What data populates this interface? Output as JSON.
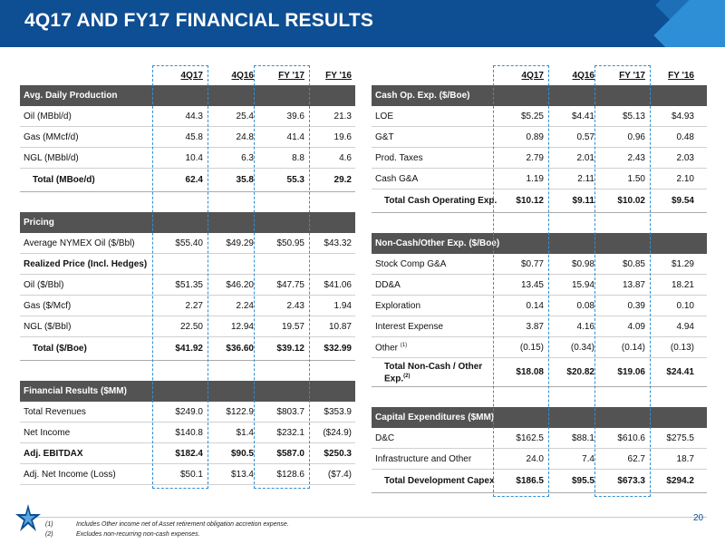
{
  "title": "4Q17 AND FY17 FINANCIAL RESULTS",
  "columns": [
    "4Q17",
    "4Q16",
    "FY '17",
    "FY '16"
  ],
  "left": {
    "sections": [
      {
        "name": "Avg. Daily Production",
        "rows": [
          {
            "label": "Oil (MBbl/d)",
            "values": [
              "44.3",
              "25.4",
              "39.6",
              "21.3"
            ]
          },
          {
            "label": "Gas (MMcf/d)",
            "values": [
              "45.8",
              "24.8",
              "41.4",
              "19.6"
            ]
          },
          {
            "label": "NGL (MBbl/d)",
            "values": [
              "10.4",
              "6.3",
              "8.8",
              "4.6"
            ]
          }
        ],
        "total": {
          "label": "Total (MBoe/d)",
          "values": [
            "62.4",
            "35.8",
            "55.3",
            "29.2"
          ]
        }
      },
      {
        "name": "Pricing",
        "rows": [
          {
            "label": "Average NYMEX Oil ($/Bbl)",
            "values": [
              "$55.40",
              "$49.29",
              "$50.95",
              "$43.32"
            ]
          },
          {
            "label": "Realized Price (Incl. Hedges)",
            "values": [
              "",
              "",
              "",
              ""
            ]
          },
          {
            "label": "Oil ($/Bbl)",
            "values": [
              "$51.35",
              "$46.20",
              "$47.75",
              "$41.06"
            ]
          },
          {
            "label": "Gas ($/Mcf)",
            "values": [
              "2.27",
              "2.24",
              "2.43",
              "1.94"
            ]
          },
          {
            "label": "NGL ($/Bbl)",
            "values": [
              "22.50",
              "12.94",
              "19.57",
              "10.87"
            ]
          }
        ],
        "total": {
          "label": "Total ($/Boe)",
          "values": [
            "$41.92",
            "$36.60",
            "$39.12",
            "$32.99"
          ]
        }
      },
      {
        "name": "Financial Results ($MM)",
        "rows": [
          {
            "label": "Total Revenues",
            "values": [
              "$249.0",
              "$122.9",
              "$803.7",
              "$353.9"
            ]
          },
          {
            "label": "Net Income",
            "values": [
              "$140.8",
              "$1.4",
              "$232.1",
              "($24.9)"
            ]
          },
          {
            "label": "Adj. EBITDAX",
            "values": [
              "$182.4",
              "$90.5",
              "$587.0",
              "$250.3"
            ]
          },
          {
            "label": "Adj. Net Income (Loss)",
            "values": [
              "$50.1",
              "$13.4",
              "$128.6",
              "($7.4)"
            ]
          }
        ]
      }
    ]
  },
  "right": {
    "sections": [
      {
        "name": "Cash Op. Exp. ($/Boe)",
        "rows": [
          {
            "label": "LOE",
            "values": [
              "$5.25",
              "$4.41",
              "$5.13",
              "$4.93"
            ]
          },
          {
            "label": "G&T",
            "values": [
              "0.89",
              "0.57",
              "0.96",
              "0.48"
            ]
          },
          {
            "label": "Prod. Taxes",
            "values": [
              "2.79",
              "2.01",
              "2.43",
              "2.03"
            ]
          },
          {
            "label": "Cash G&A",
            "values": [
              "1.19",
              "2.11",
              "1.50",
              "2.10"
            ]
          }
        ],
        "total": {
          "label": "Total Cash Operating Exp.",
          "values": [
            "$10.12",
            "$9.11",
            "$10.02",
            "$9.54"
          ]
        }
      },
      {
        "name": "Non-Cash/Other Exp. ($/Boe)",
        "rows": [
          {
            "label": "Stock Comp G&A",
            "values": [
              "$0.77",
              "$0.98",
              "$0.85",
              "$1.29"
            ]
          },
          {
            "label": "DD&A",
            "values": [
              "13.45",
              "15.94",
              "13.87",
              "18.21"
            ]
          },
          {
            "label": "Exploration",
            "values": [
              "0.14",
              "0.08",
              "0.39",
              "0.10"
            ]
          },
          {
            "label": "Interest Expense",
            "values": [
              "3.87",
              "4.16",
              "4.09",
              "4.94"
            ]
          },
          {
            "label": "Other",
            "sup": "(1)",
            "values": [
              "(0.15)",
              "(0.34)",
              "(0.14)",
              "(0.13)"
            ]
          }
        ],
        "total": {
          "label": "Total Non-Cash / Other Exp.",
          "sup": "(2)",
          "values": [
            "$18.08",
            "$20.82",
            "$19.06",
            "$24.41"
          ]
        }
      },
      {
        "name": "Capital Expenditures ($MM)",
        "rows": [
          {
            "label": "D&C",
            "values": [
              "$162.5",
              "$88.1",
              "$610.6",
              "$275.5"
            ]
          },
          {
            "label": "Infrastructure and Other",
            "values": [
              "24.0",
              "7.4",
              "62.7",
              "18.7"
            ]
          }
        ],
        "total": {
          "label": "Total Development Capex",
          "values": [
            "$186.5",
            "$95.5",
            "$673.3",
            "$294.2"
          ]
        }
      }
    ]
  },
  "footnotes": [
    {
      "num": "(1)",
      "text": "Includes Other income net of Asset retirement obligation accretion expense."
    },
    {
      "num": "(2)",
      "text": "Excludes non-recurring non-cash expenses."
    }
  ],
  "page_number": "20",
  "colors": {
    "brand": "#0e4e92",
    "accent": "#2e8fd6",
    "section_bg": "#535353"
  },
  "icons": {
    "logo": "star-logo-icon"
  }
}
